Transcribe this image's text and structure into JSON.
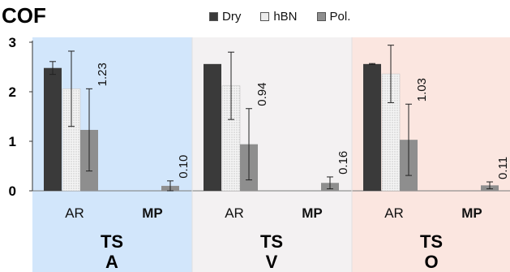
{
  "chart_data": {
    "type": "bar",
    "title": "COF",
    "ylim": [
      0,
      3
    ],
    "yticks": [
      "0",
      "1",
      "2",
      "3"
    ],
    "legend": {
      "placement": "top"
    },
    "groups": [
      {
        "name_line1": "TS",
        "name_line2": "A",
        "color": "#d2e6fb",
        "categories": [
          "AR",
          "MP"
        ]
      },
      {
        "name_line1": "TS",
        "name_line2": "V",
        "color": "#f3f1f2",
        "categories": [
          "AR",
          "MP"
        ]
      },
      {
        "name_line1": "TS",
        "name_line2": "O",
        "color": "#fbe6e0",
        "categories": [
          "AR",
          "MP"
        ]
      }
    ],
    "series": [
      {
        "name": "Dry",
        "color": "#3a3a3a",
        "values": [
          [
            2.48,
            null
          ],
          [
            2.56,
            null
          ],
          [
            2.56,
            null
          ]
        ],
        "errors": [
          [
            0.13,
            null
          ],
          [
            0,
            null
          ],
          [
            0.01,
            null
          ]
        ]
      },
      {
        "name": "hBN",
        "color": "#ececec",
        "values": [
          [
            2.06,
            null
          ],
          [
            2.12,
            null
          ],
          [
            2.36,
            null
          ]
        ],
        "errors": [
          [
            0.76,
            null
          ],
          [
            0.68,
            null
          ],
          [
            0.58,
            null
          ]
        ]
      },
      {
        "name": "Pol.",
        "color": "#8e8e8e",
        "values": [
          [
            1.23,
            0.1
          ],
          [
            0.94,
            0.16
          ],
          [
            1.03,
            0.11
          ]
        ],
        "errors": [
          [
            0.83,
            0.1
          ],
          [
            0.72,
            0.12
          ],
          [
            0.72,
            0.07
          ]
        ],
        "labels": [
          [
            "1.23",
            "0.10"
          ],
          [
            "0.94",
            "0.16"
          ],
          [
            "1.03",
            "0.11"
          ]
        ]
      }
    ]
  }
}
